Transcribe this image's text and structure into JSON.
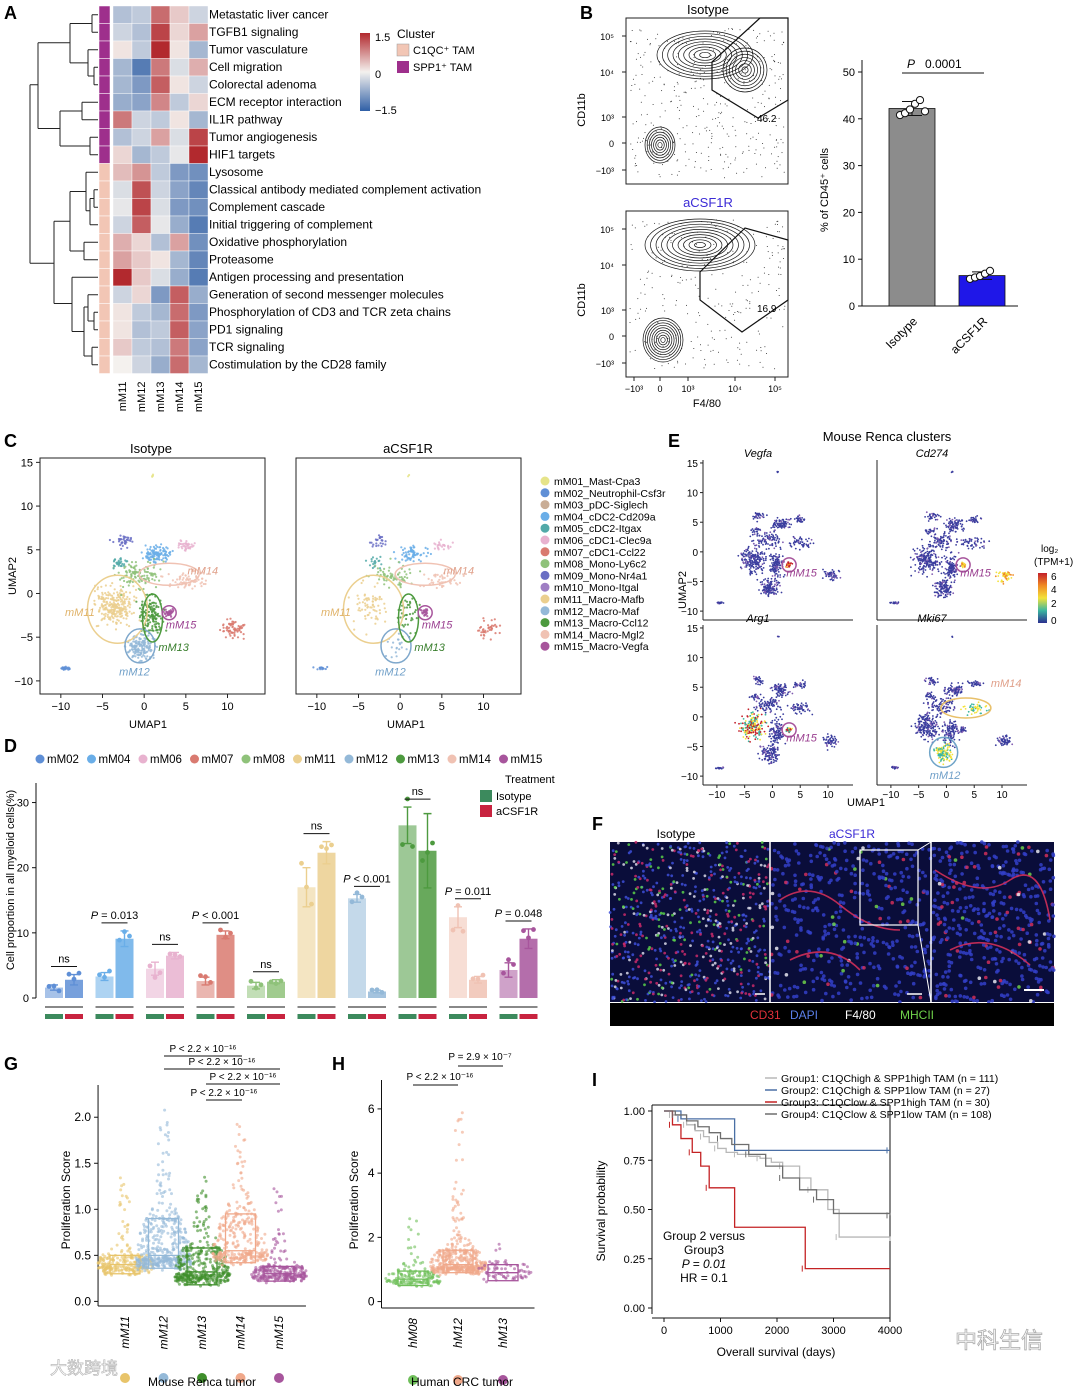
{
  "panels": {
    "A": "A",
    "B": "B",
    "C": "C",
    "D": "D",
    "E": "E",
    "F": "F",
    "G": "G",
    "H": "H",
    "I": "I"
  },
  "colors": {
    "hm_low": "#2f5fa6",
    "hm_mid": "#f4f1ee",
    "hm_high": "#b2292e",
    "c1qc": "#f2c6b5",
    "spp1": "#9e2f8c",
    "isotype": "#3c8a5d",
    "acsf1r": "#c8233f",
    "bar_iso": "#8c8c8c",
    "bar_acsf": "#1f17e8",
    "acsf_title": "#3b2bd6"
  },
  "panelA": {
    "legend_title": "Cluster",
    "legend_scale": [
      "1.5",
      "0",
      "−1.5"
    ],
    "legend_items": [
      {
        "label": "C1QC⁺ TAM",
        "color": "#f2c6b5"
      },
      {
        "label": "SPP1⁺ TAM",
        "color": "#9e2f8c"
      }
    ],
    "columns": [
      "mM11",
      "mM12",
      "mM13",
      "mM14",
      "mM15"
    ],
    "rows": [
      {
        "label": "Metastatic liver cancer",
        "cluster": "SPP1",
        "vals": [
          -0.5,
          -0.4,
          1.0,
          0.3,
          -0.3
        ]
      },
      {
        "label": "TGFB1 signaling",
        "cluster": "SPP1",
        "vals": [
          -0.3,
          -0.5,
          1.3,
          0.2,
          0.6
        ]
      },
      {
        "label": "Tumor vasculature",
        "cluster": "SPP1",
        "vals": [
          0.1,
          -0.4,
          1.5,
          0.1,
          -0.6
        ]
      },
      {
        "label": "Cell migration",
        "cluster": "SPP1",
        "vals": [
          -0.6,
          -1.2,
          0.9,
          -0.2,
          0.5
        ]
      },
      {
        "label": "Colorectal adenoma",
        "cluster": "SPP1",
        "vals": [
          -0.6,
          -0.9,
          1.1,
          0.1,
          -0.3
        ]
      },
      {
        "label": "ECM receptor interaction",
        "cluster": "SPP1",
        "vals": [
          -0.7,
          -0.8,
          0.8,
          -0.4,
          0.2
        ]
      },
      {
        "label": "IL1R pathway",
        "cluster": "SPP1",
        "vals": [
          0.9,
          -0.3,
          -0.4,
          0.1,
          -0.6
        ]
      },
      {
        "label": "Tumor angiogenesis",
        "cluster": "SPP1",
        "vals": [
          -0.5,
          -0.3,
          0.6,
          -0.2,
          1.3
        ]
      },
      {
        "label": "HIF1 targets",
        "cluster": "SPP1",
        "vals": [
          0.2,
          -0.6,
          -0.4,
          -0.1,
          1.5
        ]
      },
      {
        "label": "Lysosome",
        "cluster": "C1QC",
        "vals": [
          0.4,
          0.7,
          -0.4,
          -0.9,
          -1.0
        ]
      },
      {
        "label": "Classical antibody mediated complement activation",
        "cluster": "C1QC",
        "vals": [
          -0.2,
          1.2,
          -0.3,
          -0.8,
          -1.1
        ]
      },
      {
        "label": "Complement cascade",
        "cluster": "C1QC",
        "vals": [
          -0.1,
          1.3,
          -0.2,
          -0.9,
          -1.0
        ]
      },
      {
        "label": "Initial triggering of complement",
        "cluster": "C1QC",
        "vals": [
          -0.3,
          1.1,
          -0.1,
          -0.7,
          -1.2
        ]
      },
      {
        "label": "Oxidative phosphorylation",
        "cluster": "C1QC",
        "vals": [
          0.5,
          0.2,
          -0.5,
          0.6,
          -1.0
        ]
      },
      {
        "label": "Proteasome",
        "cluster": "C1QC",
        "vals": [
          0.6,
          0.3,
          0.1,
          -0.6,
          -1.1
        ]
      },
      {
        "label": "Antigen processing and presentation",
        "cluster": "C1QC",
        "vals": [
          1.5,
          0.3,
          -0.2,
          -0.7,
          -1.2
        ]
      },
      {
        "label": "Generation of second messenger molecules",
        "cluster": "C1QC",
        "vals": [
          -0.3,
          0.2,
          -0.9,
          1.1,
          -0.7
        ]
      },
      {
        "label": "Phosphorylation of CD3 and TCR zeta chains",
        "cluster": "C1QC",
        "vals": [
          0.1,
          -0.4,
          -0.6,
          1.0,
          -0.9
        ]
      },
      {
        "label": "PD1 signaling",
        "cluster": "C1QC",
        "vals": [
          0.1,
          -0.5,
          -0.4,
          1.1,
          -0.8
        ]
      },
      {
        "label": "TCR signaling",
        "cluster": "C1QC",
        "vals": [
          0.3,
          -0.4,
          -0.5,
          0.9,
          -0.8
        ]
      },
      {
        "label": "Costimulation by the CD28 family",
        "cluster": "C1QC",
        "vals": [
          0.0,
          -0.3,
          -0.7,
          1.0,
          -0.6
        ]
      }
    ]
  },
  "panelB": {
    "flow_top_title": "Isotype",
    "flow_bottom_title": "aCSF1R",
    "flow_ylabel": "CD11b",
    "flow_xlabel": "F4/80",
    "y_ticks": [
      "10⁵",
      "10⁴",
      "10³",
      "0",
      "−10³"
    ],
    "x_ticks": [
      "−10³",
      "0",
      "10³",
      "10⁴",
      "10⁵"
    ],
    "gate_top": "46.2",
    "gate_bottom": "16.9",
    "chart_data": {
      "type": "bar",
      "categories": [
        "Isotype",
        "aCSF1R"
      ],
      "values": [
        42.2,
        6.5
      ],
      "errors": [
        1.5,
        0.8
      ],
      "points": [
        [
          40.8,
          41.2,
          42.0,
          43.2,
          44.0,
          41.6
        ],
        [
          5.8,
          6.1,
          6.4,
          6.9,
          7.5
        ]
      ],
      "ylabel": "% of CD45⁺ cells",
      "yticks": [
        0,
        10,
        20,
        30,
        40,
        50
      ],
      "ylim": [
        0,
        52
      ],
      "pvalue_label": "P",
      "pvalue": "0.0001"
    }
  },
  "panelC": {
    "titles": [
      "Isotype",
      "aCSF1R"
    ],
    "xlabel": "UMAP1",
    "ylabel": "UMAP2",
    "xticks": [
      "−10",
      "−5",
      "0",
      "5",
      "10"
    ],
    "yticks": [
      "15",
      "10",
      "5",
      "0",
      "−5",
      "−10"
    ],
    "annot": {
      "m11": "mM11",
      "m12": "mM12",
      "m13": "mM13",
      "m14": "mM14",
      "m15": "mM15"
    },
    "legend": [
      {
        "label": "mM01_Mast-Cpa3",
        "color": "#e6e48a"
      },
      {
        "label": "mM02_Neutrophil-Csf3r",
        "color": "#5f8fd6"
      },
      {
        "label": "mM03_pDC-Siglech",
        "color": "#c9ad96"
      },
      {
        "label": "mM04_cDC2-Cd209a",
        "color": "#6aaee8"
      },
      {
        "label": "mM05_cDC2-Itgax",
        "color": "#52a9a8"
      },
      {
        "label": "mM06_cDC1-Clec9a",
        "color": "#e8b2cf"
      },
      {
        "label": "mM07_cDC1-Ccl22",
        "color": "#d97a70"
      },
      {
        "label": "mM08_Mono-Ly6c2",
        "color": "#8fc27a"
      },
      {
        "label": "mM09_Mono-Nr4a1",
        "color": "#6a6fc4"
      },
      {
        "label": "mM10_Mono-Itgal",
        "color": "#9f7fc4"
      },
      {
        "label": "mM11_Macro-Mafb",
        "color": "#ebcf8f"
      },
      {
        "label": "mM12_Macro-Maf",
        "color": "#94b9d8"
      },
      {
        "label": "mM13_Macro-Ccl12",
        "color": "#4d9a3f"
      },
      {
        "label": "mM14_Macro-Mgl2",
        "color": "#f0c2b3"
      },
      {
        "label": "mM15_Macro-Vegfa",
        "color": "#a7559c"
      }
    ]
  },
  "panelD": {
    "legend": [
      {
        "label": "mM02",
        "color": "#5f8fd6"
      },
      {
        "label": "mM04",
        "color": "#6aaee8"
      },
      {
        "label": "mM06",
        "color": "#e8b2cf"
      },
      {
        "label": "mM07",
        "color": "#d97a70"
      },
      {
        "label": "mM08",
        "color": "#8fc27a"
      },
      {
        "label": "mM11",
        "color": "#ebcf8f"
      },
      {
        "label": "mM12",
        "color": "#94b9d8"
      },
      {
        "label": "mM13",
        "color": "#4d9a3f"
      },
      {
        "label": "mM14",
        "color": "#f0c2b3"
      },
      {
        "label": "mM15",
        "color": "#a7559c"
      }
    ],
    "treatment_title": "Treatment",
    "treat_items": [
      "Isotype",
      "aCSF1R"
    ],
    "ylabel": "Cell proportion in all myeloid cells(%)",
    "chart_data": {
      "type": "bar",
      "categories": [
        "mM02",
        "mM04",
        "mM06",
        "mM07",
        "mM08",
        "mM11",
        "mM12",
        "mM13",
        "mM14",
        "mM15"
      ],
      "series": [
        {
          "name": "Isotype",
          "values": [
            1.6,
            3.3,
            4.5,
            2.6,
            1.9,
            17.0,
            15.3,
            26.5,
            12.4,
            4.3
          ]
        },
        {
          "name": "aCSF1R",
          "values": [
            2.8,
            9.1,
            6.5,
            9.7,
            2.5,
            22.3,
            1.0,
            22.6,
            2.8,
            9.1
          ]
        }
      ],
      "errors": [
        [
          0.4,
          0.6,
          1.0,
          0.6,
          0.5,
          3.0,
          0.6,
          2.8,
          1.6,
          1.1
        ],
        [
          0.8,
          1.2,
          0.5,
          0.6,
          0.3,
          1.7,
          0.2,
          5.7,
          0.5,
          1.5
        ]
      ],
      "pvalues": [
        "ns",
        "P = 0.013",
        "ns",
        "P < 0.001",
        "ns",
        "ns",
        "P < 0.001",
        "ns",
        "P = 0.011",
        "P = 0.048"
      ],
      "yticks": [
        0,
        10,
        20,
        30
      ],
      "ylim": [
        0,
        33
      ]
    }
  },
  "panelE": {
    "title": "Mouse Renca clusters",
    "genes": [
      "Vegfa",
      "Cd274",
      "Arg1",
      "Mki67"
    ],
    "xlabel": "UMAP1",
    "ylabel": "UMAP2",
    "xticks": [
      "−10",
      "−5",
      "0",
      "5",
      "10"
    ],
    "yticks": [
      "15",
      "10",
      "5",
      "0",
      "−5",
      "−10"
    ],
    "colorbar_title1": "log₂",
    "colorbar_title2": "(TPM+1)",
    "colorbar_ticks": [
      "6",
      "4",
      "2",
      "0"
    ],
    "annot_m15": "mM15",
    "annot_m14": "mM14",
    "annot_m12": "mM12"
  },
  "panelF": {
    "titles": [
      "Isotype",
      "aCSF1R"
    ],
    "channels": [
      {
        "label": "CD31",
        "color": "#e0303a"
      },
      {
        "label": "DAPI",
        "color": "#5a7fe8"
      },
      {
        "label": "F4/80",
        "color": "#ffffff"
      },
      {
        "label": "MHCII",
        "color": "#6fd14a"
      }
    ]
  },
  "panelG": {
    "ylabel": "Proliferation Score",
    "xlabel": "Mouse Renca tumor",
    "categories": [
      "mM11",
      "mM12",
      "mM13",
      "mM14",
      "mM15"
    ],
    "cat_colors": [
      "#e8c46a",
      "#94b9d8",
      "#3f8f2c",
      "#f0a88a",
      "#a7559c"
    ],
    "yticks": [
      "0.0",
      "0.5",
      "1.0",
      "1.5",
      "2.0"
    ],
    "chart_data": {
      "type": "box",
      "categories": [
        "mM11",
        "mM12",
        "mM13",
        "mM14",
        "mM15"
      ],
      "median": [
        0.4,
        0.5,
        0.32,
        0.55,
        0.3
      ],
      "q1": [
        0.3,
        0.36,
        0.18,
        0.42,
        0.22
      ],
      "q3": [
        0.5,
        0.9,
        0.58,
        0.95,
        0.38
      ],
      "max": [
        1.42,
        2.1,
        1.35,
        1.95,
        1.28
      ],
      "ylim": [
        -0.05,
        2.35
      ]
    },
    "pvals": [
      "P < 2.2 × 10⁻¹⁶",
      "P < 2.2 × 10⁻¹⁶",
      "P < 2.2 × 10⁻¹⁶",
      "P < 2.2 × 10⁻¹⁶"
    ]
  },
  "panelH": {
    "ylabel": "Proliferation Score",
    "xlabel": "Human CRC tumor",
    "categories": [
      "hM08",
      "hM12",
      "hM13"
    ],
    "cat_colors": [
      "#6fbf5a",
      "#f0a88a",
      "#a7559c"
    ],
    "yticks": [
      "0",
      "2",
      "4",
      "6"
    ],
    "chart_data": {
      "type": "box",
      "categories": [
        "hM08",
        "hM12",
        "hM13"
      ],
      "median": [
        0.7,
        1.15,
        0.9
      ],
      "q1": [
        0.5,
        0.9,
        0.65
      ],
      "q3": [
        0.95,
        1.6,
        1.15
      ],
      "max": [
        2.6,
        5.9,
        1.9
      ],
      "ylim": [
        -0.2,
        6.9
      ]
    },
    "pvals": [
      "P < 2.2 × 10⁻¹⁶",
      "P = 2.9 × 10⁻⁷"
    ]
  },
  "panelI": {
    "legend": [
      {
        "label": "Group1: C1QChigh & SPP1high TAM (n = 111)",
        "color": "#b8b8b8"
      },
      {
        "label": "Group2: C1QChigh & SPP1low TAM (n = 27)",
        "color": "#4a6fa5"
      },
      {
        "label": "Group3: C1QClow & SPP1high TAM (n = 30)",
        "color": "#c42224"
      },
      {
        "label": "Group4: C1QClow & SPP1low TAM (n = 108)",
        "color": "#6e6e6e"
      }
    ],
    "ylabel": "Survival probability",
    "xlabel": "Overall survival (days)",
    "yticks": [
      "0.00",
      "0.25",
      "0.50",
      "0.75",
      "1.00"
    ],
    "xticks": [
      "0",
      "1000",
      "2000",
      "3000",
      "4000"
    ],
    "annot": [
      "Group 2 versus",
      "Group3",
      "P = 0.01",
      "HR = 0.1"
    ],
    "chart_data": {
      "type": "line",
      "xlim": [
        0,
        4000
      ],
      "ylim": [
        0,
        1
      ],
      "series": [
        {
          "name": "Group1",
          "x": [
            0,
            150,
            300,
            400,
            550,
            700,
            800,
            950,
            1100,
            1300,
            1500,
            1700,
            1900,
            2100,
            2400,
            2600,
            2900,
            3100,
            4000
          ],
          "y": [
            1,
            0.98,
            0.96,
            0.93,
            0.9,
            0.87,
            0.84,
            0.81,
            0.79,
            0.78,
            0.77,
            0.76,
            0.74,
            0.72,
            0.66,
            0.6,
            0.5,
            0.36,
            0.34
          ]
        },
        {
          "name": "Group2",
          "x": [
            0,
            300,
            1250,
            4000
          ],
          "y": [
            1,
            0.96,
            0.8,
            0.8
          ]
        },
        {
          "name": "Group3",
          "x": [
            0,
            150,
            300,
            500,
            650,
            800,
            1250,
            2500,
            4000
          ],
          "y": [
            1,
            0.93,
            0.86,
            0.79,
            0.72,
            0.61,
            0.41,
            0.2,
            0.2
          ]
        },
        {
          "name": "Group4",
          "x": [
            0,
            200,
            400,
            600,
            800,
            1000,
            1200,
            1500,
            1800,
            2100,
            2400,
            2700,
            3000,
            4000
          ],
          "y": [
            1,
            0.98,
            0.95,
            0.92,
            0.89,
            0.86,
            0.83,
            0.78,
            0.72,
            0.66,
            0.6,
            0.55,
            0.48,
            0.47
          ]
        }
      ]
    }
  },
  "watermarks": {
    "left": "大数跨境",
    "right": "中科生信"
  }
}
